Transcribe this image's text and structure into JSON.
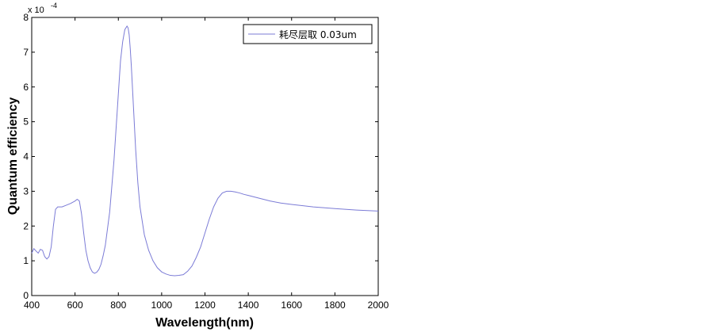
{
  "chart_data": {
    "type": "line",
    "xlabel": "Wavelength(nm)",
    "ylabel": "Quantum efficiency",
    "y_scale_label": "x 10",
    "y_scale_exponent": "-4",
    "xlim": [
      400,
      2000
    ],
    "ylim": [
      0,
      8
    ],
    "xticks": [
      400,
      600,
      800,
      1000,
      1200,
      1400,
      1600,
      1800,
      2000
    ],
    "yticks": [
      0,
      1,
      2,
      3,
      4,
      5,
      6,
      7,
      8
    ],
    "grid": false,
    "legend_position": "top-right",
    "line_color": "#7b7bd6",
    "series": [
      {
        "name": "耗尽层取 0.03um",
        "x": [
          400,
          410,
          420,
          430,
          440,
          450,
          460,
          470,
          480,
          490,
          500,
          510,
          520,
          540,
          560,
          580,
          600,
          610,
          620,
          630,
          640,
          650,
          660,
          670,
          680,
          690,
          700,
          710,
          720,
          730,
          740,
          760,
          780,
          800,
          810,
          820,
          830,
          840,
          845,
          850,
          855,
          860,
          870,
          880,
          890,
          900,
          920,
          940,
          960,
          980,
          1000,
          1020,
          1040,
          1060,
          1080,
          1100,
          1120,
          1140,
          1160,
          1180,
          1200,
          1220,
          1240,
          1260,
          1280,
          1300,
          1320,
          1340,
          1360,
          1380,
          1400,
          1450,
          1500,
          1550,
          1600,
          1700,
          1800,
          1900,
          2000
        ],
        "y": [
          1.22,
          1.35,
          1.28,
          1.22,
          1.33,
          1.3,
          1.12,
          1.05,
          1.12,
          1.4,
          2.0,
          2.48,
          2.55,
          2.55,
          2.6,
          2.65,
          2.72,
          2.77,
          2.72,
          2.35,
          1.8,
          1.3,
          1.0,
          0.8,
          0.68,
          0.64,
          0.67,
          0.75,
          0.9,
          1.15,
          1.45,
          2.4,
          3.9,
          5.8,
          6.75,
          7.3,
          7.65,
          7.75,
          7.7,
          7.5,
          7.1,
          6.6,
          5.4,
          4.2,
          3.25,
          2.55,
          1.75,
          1.3,
          1.0,
          0.8,
          0.68,
          0.62,
          0.58,
          0.57,
          0.58,
          0.6,
          0.7,
          0.85,
          1.1,
          1.4,
          1.8,
          2.2,
          2.55,
          2.8,
          2.95,
          3.0,
          3.0,
          2.98,
          2.95,
          2.91,
          2.88,
          2.8,
          2.72,
          2.66,
          2.62,
          2.55,
          2.5,
          2.46,
          2.43
        ]
      }
    ]
  }
}
